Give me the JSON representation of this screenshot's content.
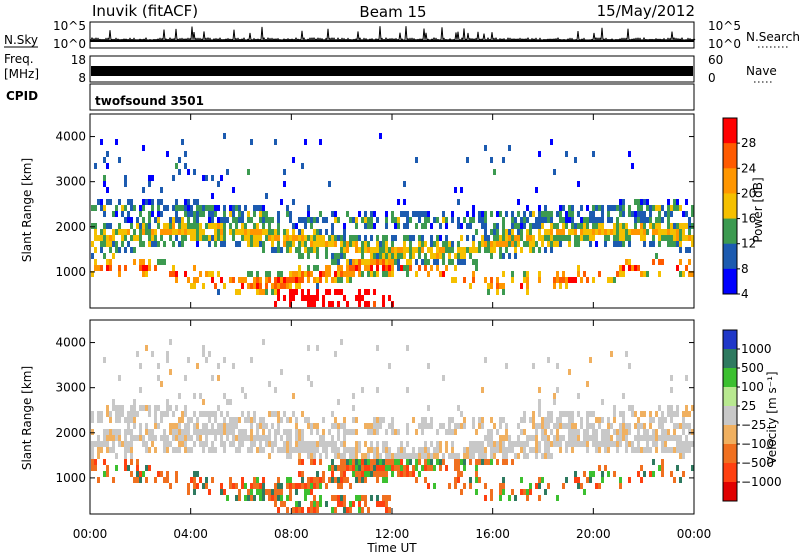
{
  "header": {
    "station": "Inuvik (fitACF)",
    "beam": "Beam 15",
    "date": "15/May/2012"
  },
  "left_labels": {
    "nsky": "N.Sky",
    "freq_line1": "Freq.",
    "freq_line2": "[MHz]",
    "cpid": "CPID"
  },
  "right_labels": {
    "nsearch": "N.Search",
    "nave": "Nave"
  },
  "cpid_name": "twofsound 3501",
  "chart_data": [
    {
      "type": "line",
      "name": "noise-panel",
      "left_ticks": [
        "10^5",
        "10^0"
      ],
      "right_ticks": [
        "10^5",
        "10^0"
      ]
    },
    {
      "type": "line",
      "name": "freq-nave-panel",
      "left_ticks": [
        "18",
        "8"
      ],
      "right_ticks": [
        "60",
        "0"
      ]
    },
    {
      "type": "heatmap",
      "name": "power-panel",
      "ylabel": "Slant Range [km]",
      "yticks": [
        1000,
        2000,
        3000,
        4000
      ],
      "ylim": [
        200,
        4500
      ],
      "colorbar_label": "Power [dB]",
      "colorbar_ticks": [
        "28",
        "24",
        "20",
        "16",
        "12",
        "8",
        "4"
      ],
      "colorbar_colors": [
        "#ff0000",
        "#ff5a00",
        "#ff9600",
        "#f5c000",
        "#3c9a50",
        "#1c5bb0",
        "#0000ff"
      ]
    },
    {
      "type": "heatmap",
      "name": "velocity-panel",
      "ylabel": "Slant Range [km]",
      "yticks": [
        1000,
        2000,
        3000,
        4000
      ],
      "ylim": [
        200,
        4500
      ],
      "colorbar_label": "Velocity [m s⁻¹]",
      "colorbar_ticks": [
        "1000",
        "500",
        "100",
        "25",
        "−25",
        "−100",
        "−500",
        "−1000"
      ],
      "colorbar_colors": [
        "#2038c8",
        "#2e7a60",
        "#3cc030",
        "#b8e890",
        "#c8c8c8",
        "#f0b060",
        "#f07020",
        "#ff4010",
        "#e00000"
      ]
    }
  ],
  "xaxis": {
    "ticks": [
      "00:00",
      "04:00",
      "08:00",
      "12:00",
      "16:00",
      "20:00",
      "00:00"
    ],
    "label": "Time UT"
  }
}
